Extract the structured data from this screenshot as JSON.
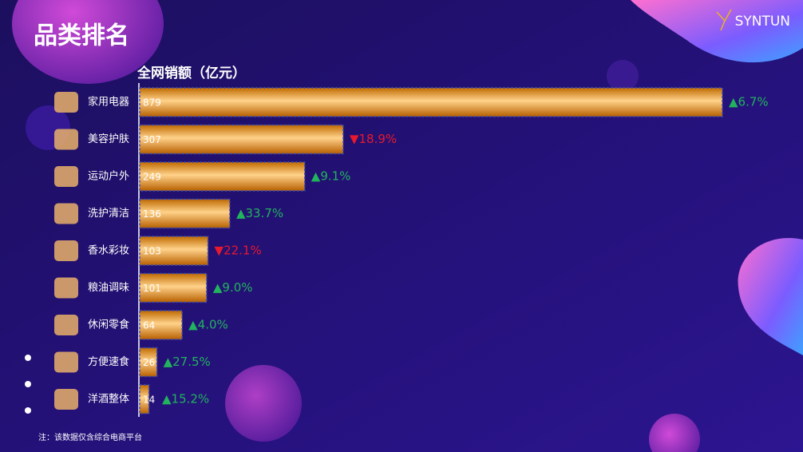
{
  "chart_data": {
    "type": "bar",
    "orientation": "horizontal",
    "title": "品类排名",
    "brand": "SYNTUN",
    "axis_label": "全网销额（亿元）",
    "note": "注：该数据仅含综合电商平台",
    "categories": [
      "家用电器",
      "美容护肤",
      "运动户外",
      "洗护清洁",
      "香水彩妆",
      "粮油调味",
      "休闲零食",
      "方便速食",
      "洋酒整体"
    ],
    "values": [
      879,
      307,
      249,
      136,
      103,
      101,
      64,
      26,
      14
    ],
    "color": "#f0a020",
    "changes": [
      {
        "label": "▲6.7%",
        "color": "#22b35e"
      },
      {
        "label": "▼18.9%",
        "color": "#e8192c"
      },
      {
        "label": "▲9.1%",
        "color": "#22b35e"
      },
      {
        "label": "▲33.7%",
        "color": "#22b35e"
      },
      {
        "label": "▼22.1%",
        "color": "#e8192c"
      },
      {
        "label": "▲9.0%",
        "color": "#22b35e"
      },
      {
        "label": "▲4.0%",
        "color": "#22b35e"
      },
      {
        "label": "▲27.5%",
        "color": "#22b35e"
      },
      {
        "label": "▲15.2%",
        "color": "#22b35e"
      }
    ]
  }
}
